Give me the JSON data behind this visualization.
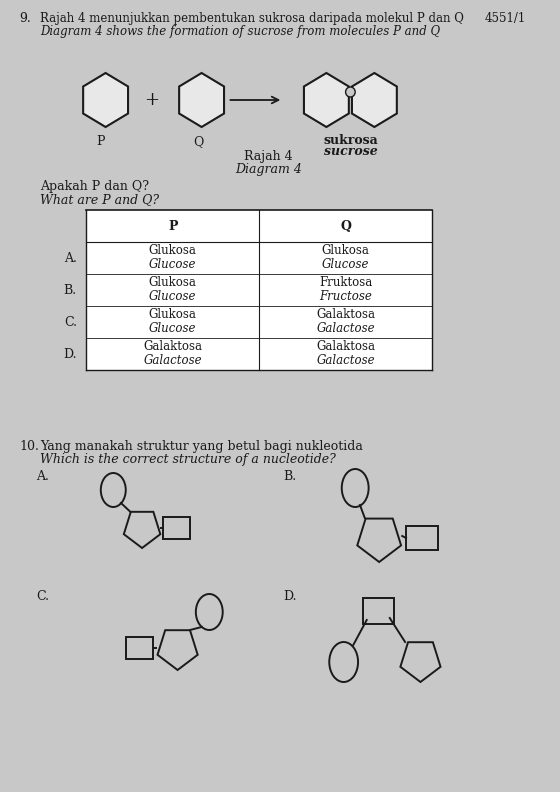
{
  "bg_color": "#c8c8c8",
  "text_color": "#1a1a1a",
  "page_ref": "4551/1",
  "q9_number": "9.",
  "q9_header_ms": "Rajah 4 menunjukkan pembentukan sukrosa daripada molekul P dan Q",
  "q9_header_en": "Diagram 4 shows the formation of sucrose from molecules P and Q",
  "q9_label_P": "P",
  "q9_label_Q": "Q",
  "q9_label_sukrosa": "sukrosa",
  "q9_label_sucrose": "sucrose",
  "q9_rajah": "Rajah 4",
  "q9_diagram": "Diagram 4",
  "q9_apakah_ms": "Apakah P dan Q?",
  "q9_apakah_en": "What are P and Q?",
  "table_P": "P",
  "table_Q": "Q",
  "rows": [
    {
      "label": "A.",
      "P_ms": "Glukosa",
      "P_en": "Glucose",
      "Q_ms": "Glukosa",
      "Q_en": "Glucose"
    },
    {
      "label": "B.",
      "P_ms": "Glukosa",
      "P_en": "Glucose",
      "Q_ms": "Fruktosa",
      "Q_en": "Fructose"
    },
    {
      "label": "C.",
      "P_ms": "Glukosa",
      "P_en": "Glucose",
      "Q_ms": "Galaktosa",
      "Q_en": "Galactose"
    },
    {
      "label": "D.",
      "P_ms": "Galaktosa",
      "P_en": "Galactose",
      "Q_ms": "Galaktosa",
      "Q_en": "Galactose"
    }
  ],
  "q10_number": "10.",
  "q10_header_ms": "Yang manakah struktur yang betul bagi nukleotida",
  "q10_header_en": "Which is the correct structure of a nucleotide?"
}
